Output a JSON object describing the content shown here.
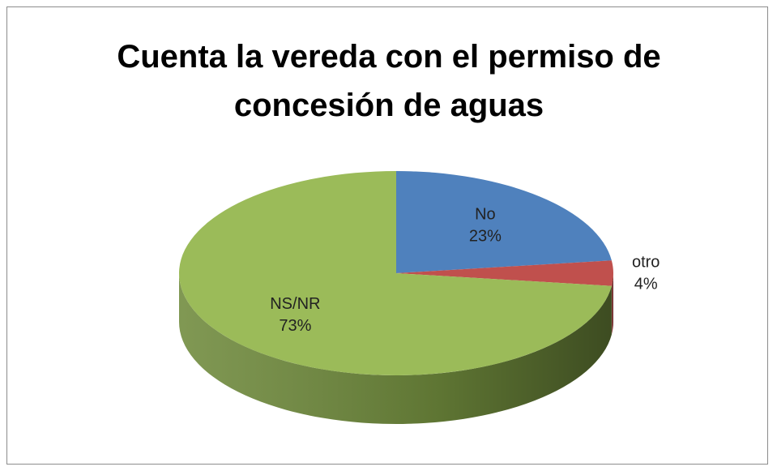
{
  "chart_data": {
    "type": "pie",
    "title": "Cuenta la vereda con el permiso de concesión de aguas",
    "categories": [
      "No",
      "otro",
      "NS/NR"
    ],
    "values": [
      23,
      4,
      73
    ],
    "value_labels": [
      "23%",
      "4%",
      "73%"
    ],
    "colors": [
      "#4f81bd",
      "#c0504d",
      "#9bbb59"
    ],
    "side_colors": [
      "#3a6391",
      "#8e3a38",
      "#6f8a3c"
    ]
  }
}
